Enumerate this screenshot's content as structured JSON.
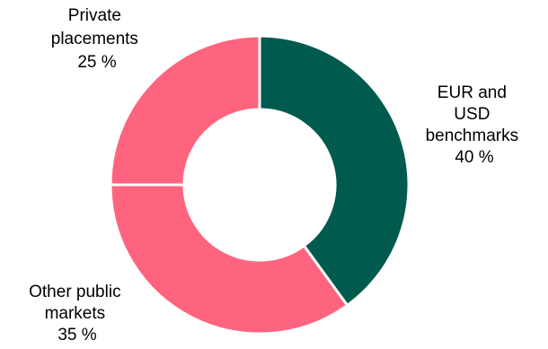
{
  "chart_data": {
    "type": "pie",
    "variant": "donut",
    "title": "",
    "legend": "none",
    "unit": "%",
    "slices": [
      {
        "label_lines": [
          "EUR and",
          "USD",
          "benchmarks"
        ],
        "value": 40,
        "value_label": "40 %",
        "color": "#005a4e"
      },
      {
        "label_lines": [
          "Other public",
          "markets"
        ],
        "value": 35,
        "value_label": "35 %",
        "color": "#ff647f"
      },
      {
        "label_lines": [
          "Private",
          "placements"
        ],
        "value": 25,
        "value_label": "25 %",
        "color": "#ff647f"
      }
    ]
  }
}
